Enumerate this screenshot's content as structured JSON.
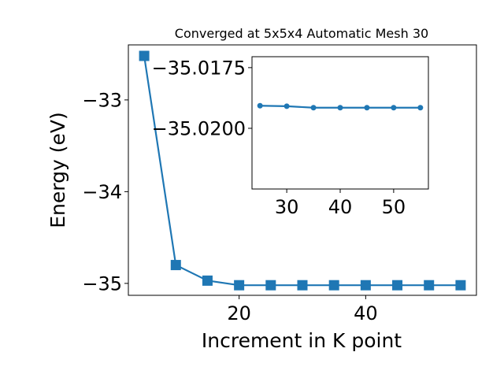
{
  "chart_data": [
    {
      "type": "line",
      "title": "Converged at 5x5x4 Automatic Mesh 30",
      "xlabel": "Increment in K point",
      "ylabel": "Energy (eV)",
      "x": [
        5,
        10,
        15,
        20,
        25,
        30,
        35,
        40,
        45,
        50,
        55
      ],
      "series": [
        {
          "values": [
            -32.52,
            -34.8,
            -34.97,
            -35.02,
            -35.02,
            -35.02,
            -35.02,
            -35.02,
            -35.02,
            -35.02,
            -35.02
          ]
        }
      ],
      "marker": "square",
      "color": "#1f77b4",
      "xlim": [
        2.5,
        57.5
      ],
      "ylim": [
        -35.13,
        -32.4
      ],
      "xticks": [
        20,
        40
      ],
      "xtick_labels": [
        "20",
        "40"
      ],
      "yticks": [
        -35,
        -34,
        -33
      ],
      "ytick_labels": [
        "−35",
        "−34",
        "−33"
      ]
    },
    {
      "type": "line",
      "inset": true,
      "x": [
        25,
        30,
        35,
        40,
        45,
        50,
        55
      ],
      "series": [
        {
          "values": [
            -35.01907,
            -35.01909,
            -35.01915,
            -35.01915,
            -35.01915,
            -35.01915,
            -35.01915
          ]
        }
      ],
      "marker": "circle",
      "color": "#1f77b4",
      "xlim": [
        23.5,
        56.5
      ],
      "ylim": [
        -35.0225,
        -35.01705
      ],
      "xticks": [
        30,
        40,
        50
      ],
      "xtick_labels": [
        "30",
        "40",
        "50"
      ],
      "yticks": [
        -35.02,
        -35.0175
      ],
      "ytick_labels": [
        "−35.0200",
        "−35.0175"
      ]
    }
  ]
}
